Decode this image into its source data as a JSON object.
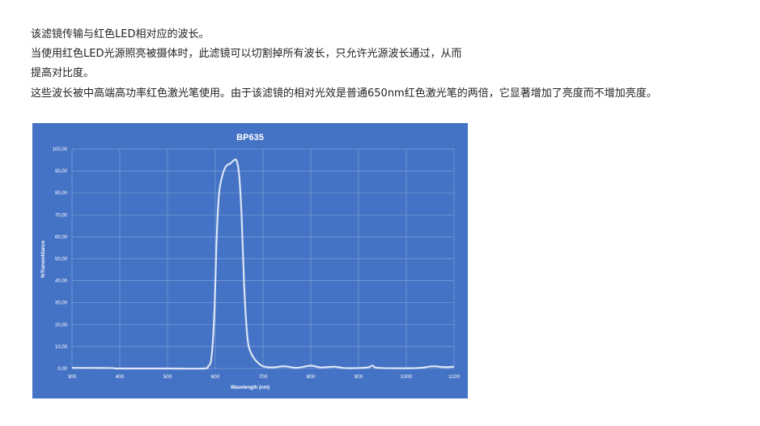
{
  "paragraphs": [
    "该滤镜传输与红色LED相对应的波长。",
    "当使用红色LED光源照亮被摄体时，此滤镜可以切割掉所有波长，只允许光源波长通过，从而",
    "提高对比度。",
    "这些波长被中高端高功率红色激光笔使用。由于该滤镜的相对光效是普通650nm红色激光笔的两倍，它显著增加了亮度而不增加亮度。"
  ],
  "chart_data": {
    "type": "line",
    "title": "BP635",
    "xlabel": "Wavelength (nm)",
    "ylabel": "%Transmittance",
    "xlim": [
      300,
      1100
    ],
    "ylim": [
      0,
      100
    ],
    "xticks": [
      "300",
      "400",
      "500",
      "600",
      "700",
      "800",
      "900",
      "1000",
      "1100"
    ],
    "yticks": [
      "0,00",
      "10,00",
      "20,00",
      "30,00",
      "40,00",
      "50,00",
      "60,00",
      "70,00",
      "80,00",
      "90,00",
      "100,00"
    ],
    "grid": true,
    "colors": {
      "background": "#4472c4",
      "line": "#dce6f5",
      "grid": "#7f9fd8",
      "text": "#ffffff"
    },
    "series": [
      {
        "x": [
          300,
          380,
          400,
          500,
          575,
          585,
          592,
          598,
          603,
          608,
          615,
          622,
          632,
          640,
          645,
          650,
          655,
          660,
          665,
          670,
          680,
          690,
          700,
          720,
          745,
          770,
          800,
          820,
          850,
          870,
          900,
          920,
          930,
          940,
          1000,
          1030,
          1055,
          1080,
          1100
        ],
        "y": [
          0.3,
          0.2,
          0,
          0,
          0,
          1,
          5,
          25,
          60,
          80,
          88,
          92,
          93.5,
          95,
          94.5,
          88,
          70,
          40,
          20,
          10,
          5,
          2.5,
          1,
          0.5,
          1,
          0.3,
          1.3,
          0.5,
          0.8,
          0.2,
          0.2,
          0.5,
          1.3,
          0.3,
          0.1,
          0.3,
          1,
          0.6,
          0.8
        ]
      }
    ]
  }
}
